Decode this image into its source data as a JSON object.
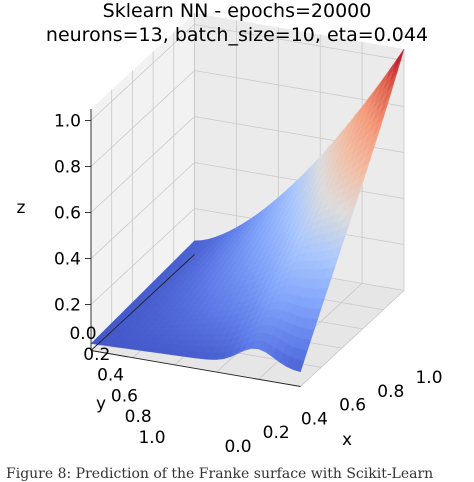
{
  "chart_data": {
    "type": "surface3d",
    "title": "Sklearn NN - epochs=20000",
    "subtitle": "neurons=13, batch_size=10, eta=0.044",
    "xlabel": "x",
    "ylabel": "y",
    "zlabel": "z",
    "xlim": [
      0,
      1
    ],
    "ylim": [
      0,
      1
    ],
    "zlim": [
      0,
      1
    ],
    "x_ticks": [
      "0.0",
      "0.2",
      "0.4",
      "0.6",
      "0.8",
      "1.0"
    ],
    "y_ticks": [
      "0.0",
      "0.2",
      "0.4",
      "0.6",
      "0.8",
      "1.0"
    ],
    "z_ticks": [
      "0.2",
      "0.4",
      "0.6",
      "0.8",
      "1.0"
    ],
    "grid": true,
    "colormap": "coolwarm",
    "colors": {
      "low": "#3b4cc0",
      "mid": "#dddcdc",
      "high": "#b40426"
    },
    "corner_values": [
      {
        "x": 0,
        "y": 0,
        "z": 0.06
      },
      {
        "x": 1,
        "y": 0,
        "z": 1.05
      },
      {
        "x": 0,
        "y": 1,
        "z": 0.0
      },
      {
        "x": 1,
        "y": 1,
        "z": 0.05
      }
    ]
  },
  "caption": "Figure 8: Prediction of the Franke surface with Scikit-Learn"
}
